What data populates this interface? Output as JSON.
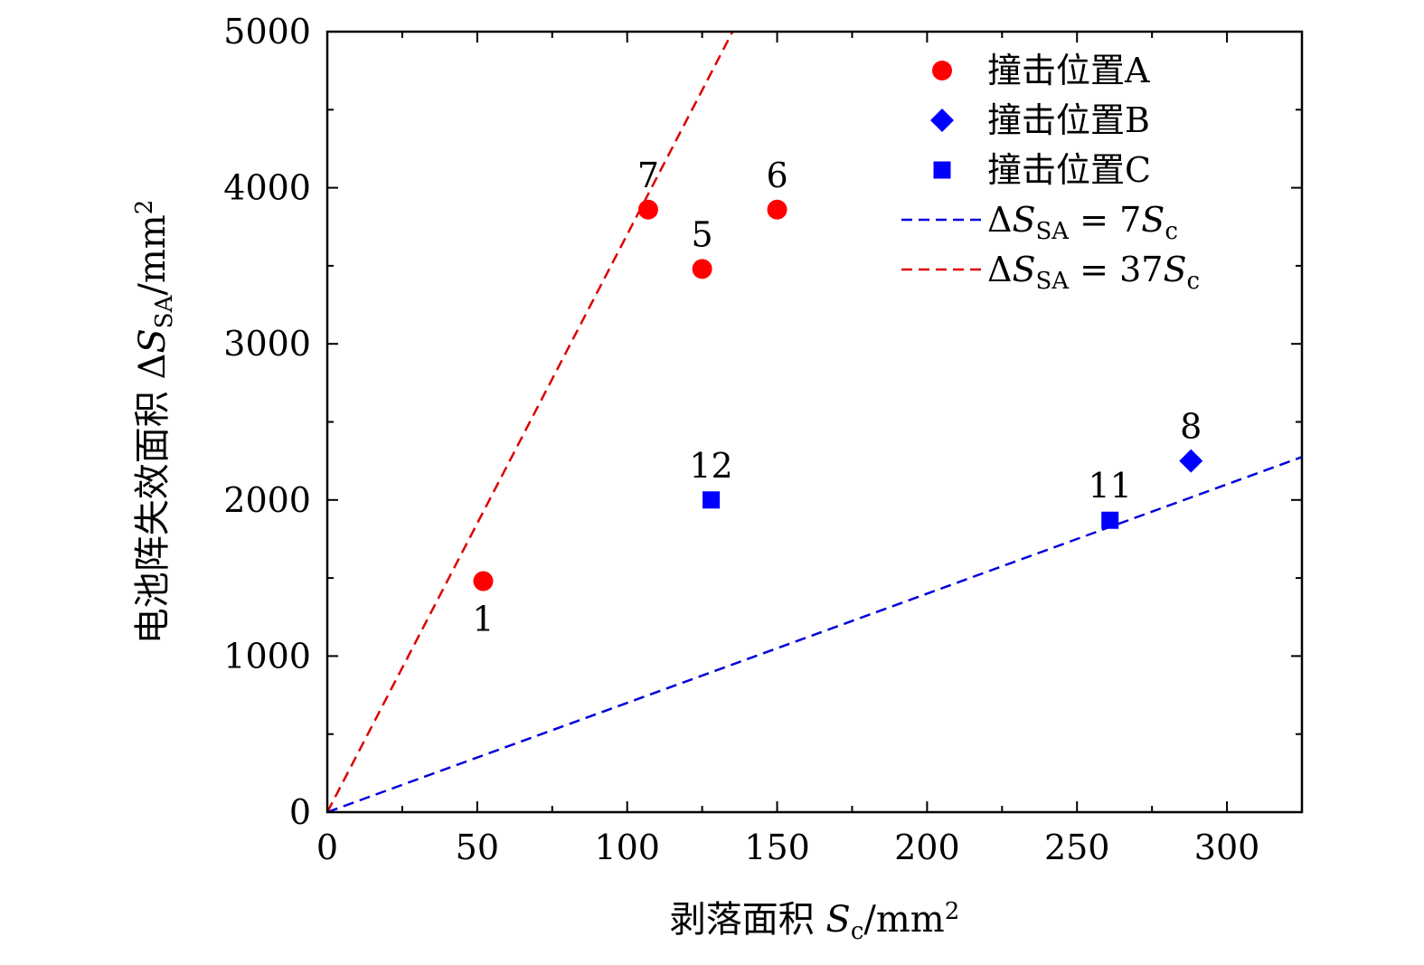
{
  "chart_data": {
    "type": "scatter",
    "xlabel": {
      "prefix": "剥落面积 ",
      "var": "S",
      "sub": "c",
      "unit": "/mm",
      "sup": "2"
    },
    "ylabel": {
      "prefix": "电池阵失效面积 ",
      "delta": "Δ",
      "var": "S",
      "sub": "SA",
      "unit": "/mm",
      "sup": "2"
    },
    "xlim": [
      0,
      325
    ],
    "ylim": [
      0,
      5000
    ],
    "xticks": [
      0,
      50,
      100,
      150,
      200,
      250,
      300
    ],
    "yticks": [
      0,
      1000,
      2000,
      3000,
      4000,
      5000
    ],
    "xtick_labels": [
      "0",
      "50",
      "100",
      "150",
      "200",
      "250",
      "300"
    ],
    "ytick_labels": [
      "0",
      "1000",
      "2000",
      "3000",
      "4000",
      "5000"
    ],
    "series": [
      {
        "name": "撞击位置A",
        "marker": "circle",
        "color": "#ff0000",
        "points": [
          {
            "x": 52,
            "y": 1480,
            "label": "1",
            "label_pos": "below"
          },
          {
            "x": 107,
            "y": 3860,
            "label": "7",
            "label_pos": "above"
          },
          {
            "x": 125,
            "y": 3480,
            "label": "5",
            "label_pos": "above"
          },
          {
            "x": 150,
            "y": 3860,
            "label": "6",
            "label_pos": "above"
          }
        ]
      },
      {
        "name": "撞击位置B",
        "marker": "diamond",
        "color": "#0000ff",
        "points": [
          {
            "x": 288,
            "y": 2250,
            "label": "8",
            "label_pos": "above"
          }
        ]
      },
      {
        "name": "撞击位置C",
        "marker": "square",
        "color": "#0000ff",
        "points": [
          {
            "x": 128,
            "y": 2000,
            "label": "12",
            "label_pos": "above"
          },
          {
            "x": 261,
            "y": 1870,
            "label": "11",
            "label_pos": "above"
          }
        ]
      }
    ],
    "lines": [
      {
        "name": {
          "delta": "Δ",
          "var": "S",
          "sub": "SA",
          "eq": " = 7",
          "var2": "S",
          "sub2": "c"
        },
        "slope": 7,
        "color": "#0000dd",
        "style": "dashed"
      },
      {
        "name": {
          "delta": "Δ",
          "var": "S",
          "sub": "SA",
          "eq": " = 37",
          "var2": "S",
          "sub2": "c"
        },
        "slope": 37,
        "color": "#dd0000",
        "style": "dashed"
      }
    ],
    "legend_position": "top-right",
    "grid": false
  }
}
